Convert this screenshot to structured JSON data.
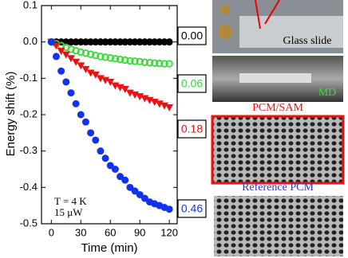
{
  "chart_data": {
    "type": "scatter",
    "y_label": "Energy shift (%)",
    "x_label": "Time (min)",
    "annotations": [
      "T = 4 K",
      "15 μW"
    ],
    "xlim": [
      -10,
      128
    ],
    "ylim": [
      -0.5,
      0.1
    ],
    "xticks": [
      0,
      30,
      60,
      90,
      120
    ],
    "yticks": [
      0.1,
      {
        "value": 0,
        "label": "0.0"
      },
      -0.1,
      -0.2,
      -0.3,
      -0.4,
      -0.5
    ],
    "x": [
      0,
      5,
      10,
      15,
      20,
      25,
      30,
      35,
      40,
      45,
      50,
      55,
      60,
      65,
      70,
      75,
      80,
      85,
      90,
      95,
      100,
      105,
      110,
      115,
      120
    ],
    "series": [
      {
        "color": "#000000",
        "marker": "circle",
        "end_label": "0.00",
        "values": [
          0,
          0,
          0,
          0,
          0,
          0,
          0,
          0,
          0,
          0,
          0,
          0,
          0,
          0,
          0,
          0,
          0,
          0,
          0,
          0,
          0,
          0,
          0,
          0,
          0
        ]
      },
      {
        "color": "#33dd33",
        "marker": "open-circle",
        "end_label": "0.06",
        "values": [
          0,
          -0.005,
          -0.01,
          -0.015,
          -0.02,
          -0.024,
          -0.028,
          -0.031,
          -0.034,
          -0.037,
          -0.04,
          -0.042,
          -0.044,
          -0.046,
          -0.048,
          -0.05,
          -0.052,
          -0.053,
          -0.054,
          -0.056,
          -0.057,
          -0.058,
          -0.059,
          -0.06,
          -0.06
        ]
      },
      {
        "color": "#ee1111",
        "marker": "triangle-down",
        "end_label": "0.18",
        "values": [
          0,
          -0.01,
          -0.025,
          -0.035,
          -0.045,
          -0.055,
          -0.065,
          -0.075,
          -0.085,
          -0.09,
          -0.1,
          -0.105,
          -0.11,
          -0.12,
          -0.125,
          -0.13,
          -0.14,
          -0.145,
          -0.15,
          -0.155,
          -0.16,
          -0.165,
          -0.17,
          -0.175,
          -0.18
        ]
      },
      {
        "color": "#1133ee",
        "marker": "circle",
        "end_label": "0.46",
        "values": [
          0,
          -0.04,
          -0.08,
          -0.11,
          -0.14,
          -0.17,
          -0.2,
          -0.22,
          -0.25,
          -0.27,
          -0.3,
          -0.32,
          -0.34,
          -0.35,
          -0.37,
          -0.38,
          -0.4,
          -0.41,
          -0.42,
          -0.43,
          -0.44,
          -0.445,
          -0.45,
          -0.455,
          -0.46
        ]
      }
    ]
  },
  "panels": [
    {
      "label": "Glass slide"
    },
    {
      "label": "MD"
    },
    {
      "label": "PCM/SAM"
    },
    {
      "label": "Reference PCM"
    }
  ]
}
